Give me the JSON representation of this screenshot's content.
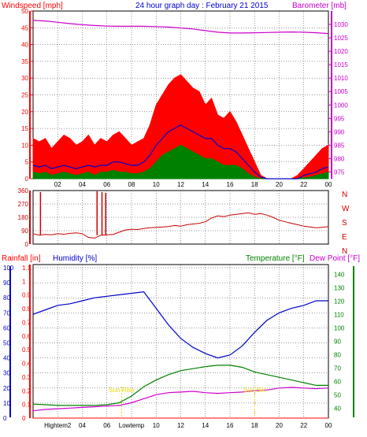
{
  "header": {
    "wind_label": "Windspeed [mph]",
    "title": "24 hour graph day : February 21 2015",
    "baro_label": "Barometer [mb]"
  },
  "colors": {
    "wind": "#ff0000",
    "gust_fill": "#ff0000",
    "avg_wind": "#0000cc",
    "wind_low": "#008000",
    "baro": "#cc00cc",
    "dir": "#cc0000",
    "humidity": "#0000cc",
    "temp": "#008000",
    "dew": "#cc00cc",
    "rain": "#ff0000",
    "sun": "#e8d800",
    "grid": "#000000"
  },
  "chart_data": [
    {
      "type": "line",
      "name": "wind-barometer",
      "x_ticks": [
        "02",
        "04",
        "06",
        "08",
        "10",
        "12",
        "14",
        "16",
        "18",
        "20",
        "22",
        "00"
      ],
      "y_left_ticks": [
        "0",
        "5",
        "10",
        "15",
        "20",
        "25",
        "30",
        "35",
        "40",
        "45",
        "50"
      ],
      "ylim_left": [
        0,
        50
      ],
      "y_right_ticks": [
        "975",
        "980",
        "985",
        "990",
        "995",
        "1000",
        "1005",
        "1010",
        "1015",
        "1020",
        "1025",
        "1030"
      ],
      "ylim_right": [
        972.5,
        1035
      ],
      "gust_x": [
        0,
        0.5,
        1,
        1.5,
        2,
        2.5,
        3,
        3.5,
        4,
        4.5,
        5,
        5.5,
        6,
        6.5,
        7,
        7.5,
        8,
        8.5,
        9,
        9.5,
        10,
        10.5,
        11,
        11.5,
        12,
        12.5,
        13,
        13.5,
        14,
        14.5,
        15,
        15.5,
        16,
        16.5,
        17,
        17.5,
        18,
        18.5,
        19,
        19.5,
        20,
        20.5,
        21,
        21.5,
        22,
        22.5,
        23,
        23.5,
        24
      ],
      "gust": [
        12,
        11,
        12,
        9,
        11,
        13,
        12,
        10,
        11,
        13,
        10,
        12,
        11,
        13,
        14,
        12,
        10,
        11,
        12,
        16,
        22,
        25,
        28,
        30,
        31,
        29,
        27,
        26,
        22,
        24,
        19,
        18,
        20,
        17,
        13,
        9,
        5,
        1,
        0,
        0,
        0,
        0,
        0,
        1,
        3,
        5,
        7,
        9,
        10
      ],
      "avg_wind": [
        4,
        3.5,
        4,
        3,
        3.5,
        4,
        3.5,
        3,
        3.5,
        4,
        3.5,
        4,
        4,
        5,
        5,
        4.5,
        4,
        4,
        5,
        7,
        10,
        12,
        14,
        15,
        16,
        15,
        14,
        13,
        12,
        12,
        10,
        9,
        9,
        8,
        6,
        4,
        2,
        0.5,
        0,
        0,
        0,
        0,
        0,
        0,
        1,
        1.5,
        2,
        3,
        3.5
      ],
      "low_wind": [
        2,
        1.5,
        2,
        1,
        1.5,
        2,
        1.5,
        1,
        1.5,
        2,
        1,
        2,
        2,
        2.5,
        2,
        2,
        1.5,
        1.5,
        2,
        3,
        5,
        7,
        8,
        9,
        10,
        9,
        8,
        7,
        6,
        6,
        5,
        4,
        4,
        4,
        3,
        1.5,
        0.5,
        0,
        0,
        0,
        0,
        0,
        0,
        0,
        0.3,
        0.5,
        1,
        1.5,
        2
      ],
      "baro_x": [
        0,
        1,
        2,
        3,
        4,
        5,
        6,
        7,
        8,
        9,
        10,
        11,
        12,
        13,
        14,
        15,
        16,
        17,
        18,
        19,
        20,
        21,
        22,
        23,
        24
      ],
      "baro": [
        1031.5,
        1031.3,
        1030.8,
        1030.3,
        1029.9,
        1029.6,
        1029.4,
        1029.3,
        1029.3,
        1029.3,
        1029.2,
        1029.0,
        1028.7,
        1028.3,
        1027.7,
        1027.1,
        1026.8,
        1026.8,
        1026.9,
        1027.0,
        1027.1,
        1027.2,
        1027.1,
        1026.9,
        1026.6
      ]
    },
    {
      "type": "line",
      "name": "wind-direction",
      "x_ticks": [
        "02",
        "04",
        "06",
        "08",
        "10",
        "12",
        "14",
        "16",
        "18",
        "20",
        "22",
        "00"
      ],
      "y_left_ticks": [
        "0",
        "90",
        "180",
        "270",
        "360"
      ],
      "ylim_left": [
        0,
        360
      ],
      "compass_labels": [
        "N",
        "W",
        "S",
        "E",
        "N"
      ],
      "x": [
        0,
        0.5,
        1,
        1.5,
        2,
        2.5,
        3,
        3.5,
        4,
        4.5,
        5,
        5.5,
        6,
        6.5,
        7,
        7.5,
        8,
        8.5,
        9,
        9.5,
        10,
        10.5,
        11,
        11.5,
        12,
        12.5,
        13,
        13.5,
        14,
        14.5,
        15,
        15.5,
        16,
        16.5,
        17,
        17.5,
        18,
        18.5,
        19,
        19.5,
        20,
        20.5,
        21,
        21.5,
        22,
        22.5,
        23,
        23.5,
        24
      ],
      "values": [
        70,
        60,
        65,
        62,
        70,
        66,
        72,
        75,
        70,
        45,
        40,
        60,
        62,
        65,
        80,
        95,
        100,
        98,
        105,
        110,
        112,
        115,
        118,
        125,
        120,
        130,
        135,
        140,
        150,
        175,
        190,
        185,
        195,
        200,
        205,
        210,
        200,
        205,
        195,
        180,
        160,
        150,
        140,
        130,
        120,
        115,
        110,
        112,
        118
      ],
      "spikes": [
        {
          "x": 0.6,
          "y": 350
        },
        {
          "x": 5.2,
          "y": 355
        },
        {
          "x": 5.6,
          "y": 350
        },
        {
          "x": 5.9,
          "y": 345
        }
      ]
    },
    {
      "type": "line",
      "name": "temperature-humidity-rain",
      "x_ticks": [
        "Hightem2",
        "04",
        "06",
        "Lowtemp",
        "10",
        "12",
        "14",
        "16",
        "18",
        "20",
        "22",
        "00"
      ],
      "header": {
        "rain_label": "Rainfall [in]",
        "humidity_label": "Humidity [%]",
        "temp_label": "Temperature [°F]",
        "dew_label": "Dew Point [°F]"
      },
      "humidity_ticks": [
        "0",
        "10",
        "20",
        "30",
        "40",
        "50",
        "60",
        "70",
        "80",
        "90",
        "100"
      ],
      "humidity_lim": [
        0,
        100
      ],
      "rain_ticks": [
        "0",
        "0.1",
        "0.2",
        "0.3",
        "0.4",
        "0.5",
        "0.6",
        "0.7",
        "0.8",
        "0.9",
        "1",
        "1.1"
      ],
      "rain_lim": [
        0,
        1.1
      ],
      "temp_ticks": [
        "40",
        "50",
        "60",
        "70",
        "80",
        "90",
        "100",
        "110",
        "120",
        "130",
        "140"
      ],
      "temp_lim": [
        32.5,
        145
      ],
      "x": [
        0,
        1,
        2,
        3,
        4,
        5,
        6,
        7,
        8,
        9,
        10,
        11,
        12,
        13,
        14,
        15,
        16,
        17,
        18,
        19,
        20,
        21,
        22,
        23,
        24
      ],
      "humidity": [
        69,
        72,
        75,
        76,
        78,
        80,
        81,
        82,
        83,
        84,
        73,
        62,
        53,
        47,
        43,
        40,
        42,
        48,
        57,
        65,
        70,
        73,
        75,
        78,
        78
      ],
      "temperature": [
        43,
        42.5,
        42,
        42,
        42,
        42,
        42.5,
        44,
        49,
        56,
        61,
        65,
        68,
        69.5,
        71,
        72,
        72,
        70.5,
        67,
        65,
        63,
        61,
        59,
        57,
        57
      ],
      "dew_point": [
        38,
        39,
        39.5,
        40,
        40.5,
        41,
        41.5,
        42,
        44,
        47,
        50,
        51.5,
        52,
        52.5,
        51.5,
        51,
        51.5,
        52,
        53,
        53.5,
        55,
        55.5,
        55,
        54.5,
        55
      ],
      "rainfall": [
        0,
        0,
        0,
        0,
        0,
        0,
        0,
        0,
        0,
        0,
        0,
        0,
        0,
        0,
        0,
        0,
        0,
        0,
        0,
        0,
        0,
        0,
        0,
        0,
        0
      ],
      "annotations": [
        {
          "text": "Sun Rise",
          "x": 7.2
        },
        {
          "text": "Sun Set",
          "x": 18.0
        }
      ]
    }
  ]
}
